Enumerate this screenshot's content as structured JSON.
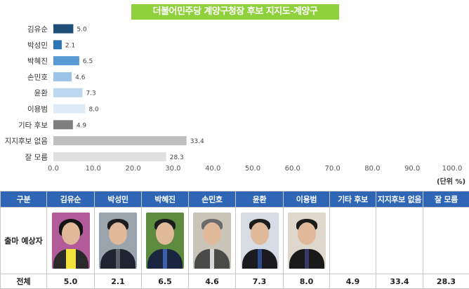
{
  "title": "더불어민주당 계양구청장 후보 지지도-계양구",
  "unit": "(단위 %)",
  "colors": {
    "header_bg": "#2e66b5",
    "title_bg": "#8fd13c"
  },
  "chart_data": {
    "type": "bar",
    "orientation": "horizontal",
    "title": "더불어민주당 계양구청장 후보 지지도-계양구",
    "categories": [
      "김유순",
      "박성민",
      "박혜진",
      "손민호",
      "윤환",
      "이용범",
      "기타 후보",
      "지지후보 없음",
      "잘 모름"
    ],
    "values": [
      5.0,
      2.1,
      6.5,
      4.6,
      7.3,
      8.0,
      4.9,
      33.4,
      28.3
    ],
    "bar_colors": [
      "#1f4e79",
      "#2e75b6",
      "#5b9bd5",
      "#9dc3e6",
      "#bdd7ee",
      "#deebf7",
      "#7f7f7f",
      "#bfbfbf",
      "#e0e0e0"
    ],
    "xlim": [
      0,
      100
    ],
    "xticks": [
      0,
      10,
      20,
      30,
      40,
      50,
      60,
      70,
      80,
      90,
      100
    ],
    "xtick_labels": [
      "0.0",
      "10.0",
      "20.0",
      "30.0",
      "40.0",
      "50.0",
      "60.0",
      "70.0",
      "80.0",
      "90.0",
      "100.0"
    ],
    "grid": false,
    "legend": "none",
    "xlabel": "",
    "ylabel": ""
  },
  "table": {
    "header_label": "구분",
    "row1_label": "출마 예상자",
    "row2_label": "전체",
    "columns": [
      {
        "name": "김유순",
        "value": "5.0",
        "photo": "candidate-photo-woman"
      },
      {
        "name": "박성민",
        "value": "2.1",
        "photo": "candidate-photo-man"
      },
      {
        "name": "박혜진",
        "value": "6.5",
        "photo": "candidate-photo-man"
      },
      {
        "name": "손민호",
        "value": "4.6",
        "photo": "candidate-photo-man-glasses"
      },
      {
        "name": "윤환",
        "value": "7.3",
        "photo": "candidate-photo-man"
      },
      {
        "name": "이용범",
        "value": "8.0",
        "photo": "candidate-photo-man-glasses"
      },
      {
        "name": "기타 후보",
        "value": "4.9",
        "photo": ""
      },
      {
        "name": "지지후보 없음",
        "value": "33.4",
        "photo": ""
      },
      {
        "name": "잘 모름",
        "value": "28.3",
        "photo": ""
      }
    ]
  }
}
